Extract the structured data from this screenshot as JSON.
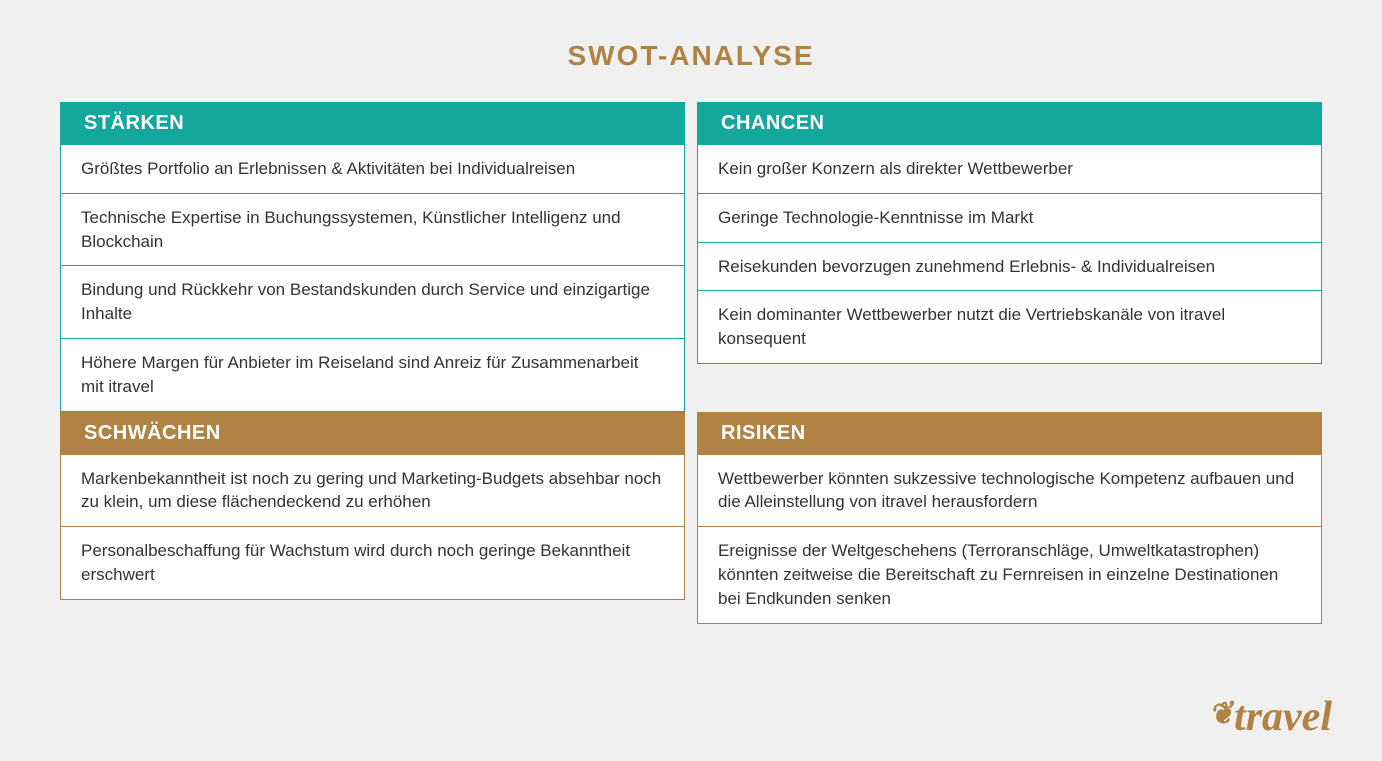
{
  "title": "SWOT-ANALYSE",
  "colors": {
    "title": "#b08244",
    "top_header_bg": "#14a79d",
    "top_border": "#14a79d",
    "bottom_header_bg": "#b08244",
    "bottom_border": "#b08244",
    "background": "#f0f0f0",
    "cell_bg": "#ffffff",
    "text": "#333333",
    "logo": "#b08244"
  },
  "quadrants": [
    {
      "key": "strengths",
      "header": "STÄRKEN",
      "row": "top",
      "items": [
        "Größtes Portfolio an Erlebnissen & Aktivitäten bei Individualreisen",
        "Technische Expertise in Buchungssystemen, Künstlicher Intelligenz und Blockchain",
        "Bindung und Rückkehr von Bestandskunden durch Service und einzigartige Inhalte",
        "Höhere Margen für Anbieter im Reiseland sind Anreiz für Zusammenarbeit mit itravel"
      ]
    },
    {
      "key": "opportunities",
      "header": "CHANCEN",
      "row": "top",
      "items": [
        "Kein großer Konzern als direkter Wettbewerber",
        "Geringe Technologie-Kenntnisse im Markt",
        "Reisekunden bevorzugen zunehmend Erlebnis- & Individualreisen",
        "Kein dominanter Wettbewerber nutzt die Vertriebskanäle von itravel konsequent"
      ]
    },
    {
      "key": "weaknesses",
      "header": "SCHWÄCHEN",
      "row": "bottom",
      "items": [
        "Markenbekanntheit ist noch zu gering und Marketing-Budgets absehbar noch zu klein, um diese flächendeckend zu erhöhen",
        "Personalbeschaffung für Wachstum wird durch noch geringe Bekanntheit erschwert"
      ]
    },
    {
      "key": "risks",
      "header": "RISIKEN",
      "row": "bottom",
      "items": [
        "Wettbewerber könnten sukzessive technologische Kompetenz aufbauen und die Alleinstellung von itravel herausfordern",
        "Ereignisse der Weltgeschehens (Terroranschläge, Umweltkatastrophen) könnten zeitweise die Bereitschaft zu Fernreisen in einzelne Destinationen bei Endkunden senken"
      ]
    }
  ],
  "logo": {
    "text": "travel",
    "leaf": "❦"
  }
}
